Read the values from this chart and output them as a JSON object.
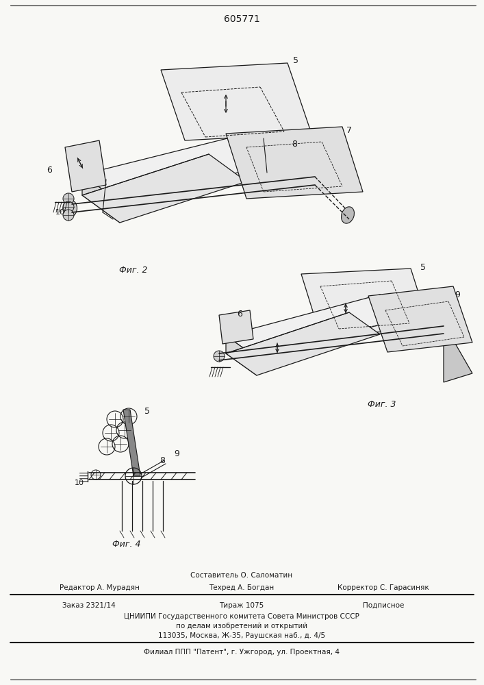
{
  "patent_number": "605771",
  "background_color": "#f8f8f5",
  "line_color": "#1a1a1a",
  "fig2_label": "Фиг. 2",
  "fig3_label": "Фиг. 3",
  "fig4_label": "Фиг. 4",
  "footer_line1": "Составитель О. Саломатин",
  "footer_line2_col1": "Редактор А. Мурадян",
  "footer_line2_col2": "Техред А. Богдан",
  "footer_line2_col3": "Корректор С. Гарасиняк",
  "footer_line3_col1": "Заказ 2321/14",
  "footer_line3_col2": "Тираж 1075",
  "footer_line3_col3": "Подписное",
  "footer_line4": "ЦНИИПИ Государственного комитета Совета Министров СССР",
  "footer_line5": "по делам изобретений и открытий",
  "footer_line6": "113035, Москва, Ж-35, Раушская наб., д. 4/5",
  "footer_line7": "Филиал ППП \"Патент\", г. Ужгород, ул. Проектная, 4"
}
